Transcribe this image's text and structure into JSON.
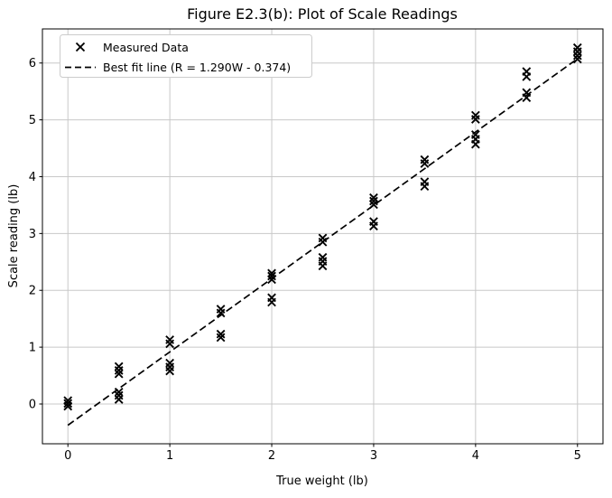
{
  "figure": {
    "title": "Figure E2.3(b): Plot of Scale Readings",
    "background_color": "#ffffff",
    "grid_color": "#c8c8c8",
    "spine_color": "#000000",
    "marker_color": "#000000",
    "line_color": "#000000",
    "legend_border_color": "#cccccc"
  },
  "legend": {
    "entries": [
      {
        "marker": "x-marker-icon",
        "label": "Measured Data"
      },
      {
        "marker": "dashed-line-icon",
        "label": "Best fit line (R = 1.290W - 0.374)"
      }
    ]
  },
  "chart_data": {
    "type": "scatter",
    "title": "Figure E2.3(b): Plot of Scale Readings",
    "xlabel": "True weight (lb)",
    "ylabel": "Scale reading (lb)",
    "xlim": [
      -0.25,
      5.25
    ],
    "ylim": [
      -0.7,
      6.6
    ],
    "x_ticks": [
      0,
      1,
      2,
      3,
      4,
      5
    ],
    "y_ticks": [
      0,
      1,
      2,
      3,
      4,
      5,
      6
    ],
    "grid": true,
    "legend_position": "upper left",
    "series": [
      {
        "name": "Measured Data",
        "type": "scatter",
        "marker": "x",
        "color": "#000000",
        "points": [
          {
            "w": 0.0,
            "readings": [
              0.06,
              0.01,
              -0.04
            ]
          },
          {
            "w": 0.5,
            "readings": [
              0.66,
              0.59,
              0.53,
              0.21,
              0.15,
              0.08
            ]
          },
          {
            "w": 1.0,
            "readings": [
              1.13,
              1.06,
              0.72,
              0.65,
              0.58
            ]
          },
          {
            "w": 1.5,
            "readings": [
              1.67,
              1.6,
              1.23,
              1.17
            ]
          },
          {
            "w": 2.0,
            "readings": [
              2.3,
              2.25,
              2.19,
              1.87,
              1.79
            ]
          },
          {
            "w": 2.5,
            "readings": [
              2.92,
              2.85,
              2.58,
              2.51,
              2.43
            ]
          },
          {
            "w": 3.0,
            "readings": [
              3.63,
              3.57,
              3.51,
              3.21,
              3.13
            ]
          },
          {
            "w": 3.5,
            "readings": [
              4.3,
              4.23,
              3.91,
              3.83
            ]
          },
          {
            "w": 4.0,
            "readings": [
              5.08,
              5.01,
              4.74,
              4.66,
              4.57
            ]
          },
          {
            "w": 4.5,
            "readings": [
              5.85,
              5.76,
              5.48,
              5.39
            ]
          },
          {
            "w": 5.0,
            "readings": [
              6.27,
              6.2,
              6.13,
              6.07
            ]
          }
        ]
      },
      {
        "name": "Best fit line (R = 1.290W - 0.374)",
        "type": "line",
        "style": "dashed",
        "color": "#000000",
        "slope": 1.29,
        "intercept": -0.374,
        "equation": "R = 1.290W - 0.374",
        "x_range": [
          0,
          5
        ]
      }
    ]
  }
}
